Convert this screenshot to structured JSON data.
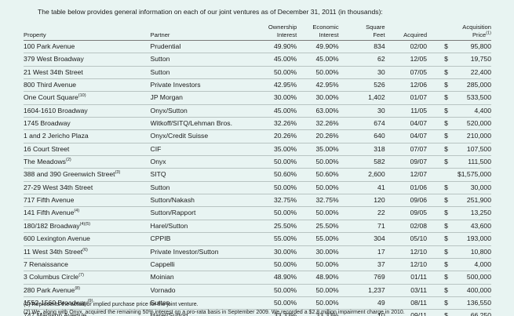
{
  "intro": "The table below provides general information on each of our joint ventures as of December 31, 2011 (in thousands):",
  "headers": {
    "property": "Property",
    "partner": "Partner",
    "ownership_1": "Ownership",
    "ownership_2": "Interest",
    "economic_1": "Economic",
    "economic_2": "Interest",
    "square_1": "Square",
    "square_2": "Feet",
    "acquired": "Acquired",
    "price_1": "Acquisition",
    "price_2": "Price",
    "price_sup": "(1)"
  },
  "rows": [
    {
      "property": "100 Park Avenue",
      "sup": "",
      "partner": "Prudential",
      "ownership": "49.90%",
      "economic": "49.90%",
      "sqft": "834",
      "acquired": "02/00",
      "dollar": "$",
      "price": "95,800"
    },
    {
      "property": "379 West Broadway",
      "sup": "",
      "partner": "Sutton",
      "ownership": "45.00%",
      "economic": "45.00%",
      "sqft": "62",
      "acquired": "12/05",
      "dollar": "$",
      "price": "19,750"
    },
    {
      "property": "21 West 34th Street",
      "sup": "",
      "partner": "Sutton",
      "ownership": "50.00%",
      "economic": "50.00%",
      "sqft": "30",
      "acquired": "07/05",
      "dollar": "$",
      "price": "22,400"
    },
    {
      "property": "800 Third Avenue",
      "sup": "",
      "partner": "Private Investors",
      "ownership": "42.95%",
      "economic": "42.95%",
      "sqft": "526",
      "acquired": "12/06",
      "dollar": "$",
      "price": "285,000"
    },
    {
      "property": "One Court Square",
      "sup": "(10)",
      "partner": "JP Morgan",
      "ownership": "30.00%",
      "economic": "30.00%",
      "sqft": "1,402",
      "acquired": "01/07",
      "dollar": "$",
      "price": "533,500"
    },
    {
      "property": "1604-1610 Broadway",
      "sup": "",
      "partner": "Onyx/Sutton",
      "ownership": "45.00%",
      "economic": "63.00%",
      "sqft": "30",
      "acquired": "11/05",
      "dollar": "$",
      "price": "4,400"
    },
    {
      "property": "1745 Broadway",
      "sup": "",
      "partner": "Witkoff/SITQ/Lehman Bros.",
      "ownership": "32.26%",
      "economic": "32.26%",
      "sqft": "674",
      "acquired": "04/07",
      "dollar": "$",
      "price": "520,000"
    },
    {
      "property": "1 and 2 Jericho Plaza",
      "sup": "",
      "partner": "Onyx/Credit Suisse",
      "ownership": "20.26%",
      "economic": "20.26%",
      "sqft": "640",
      "acquired": "04/07",
      "dollar": "$",
      "price": "210,000"
    },
    {
      "property": "16 Court Street",
      "sup": "",
      "partner": "CIF",
      "ownership": "35.00%",
      "economic": "35.00%",
      "sqft": "318",
      "acquired": "07/07",
      "dollar": "$",
      "price": "107,500"
    },
    {
      "property": "The Meadows",
      "sup": "(2)",
      "partner": "Onyx",
      "ownership": "50.00%",
      "economic": "50.00%",
      "sqft": "582",
      "acquired": "09/07",
      "dollar": "$",
      "price": "111,500"
    },
    {
      "property": "388 and 390 Greenwich Street",
      "sup": "(3)",
      "partner": "SITQ",
      "ownership": "50.60%",
      "economic": "50.60%",
      "sqft": "2,600",
      "acquired": "12/07",
      "dollar": "",
      "price": "$1,575,000"
    },
    {
      "property": "27-29 West 34th Street",
      "sup": "",
      "partner": "Sutton",
      "ownership": "50.00%",
      "economic": "50.00%",
      "sqft": "41",
      "acquired": "01/06",
      "dollar": "$",
      "price": "30,000"
    },
    {
      "property": "717 Fifth Avenue",
      "sup": "",
      "partner": "Sutton/Nakash",
      "ownership": "32.75%",
      "economic": "32.75%",
      "sqft": "120",
      "acquired": "09/06",
      "dollar": "$",
      "price": "251,900"
    },
    {
      "property": "141 Fifth Avenue",
      "sup": "(4)",
      "partner": "Sutton/Rapport",
      "ownership": "50.00%",
      "economic": "50.00%",
      "sqft": "22",
      "acquired": "09/05",
      "dollar": "$",
      "price": "13,250"
    },
    {
      "property": "180/182 Broadway",
      "sup": "(4)(5)",
      "partner": "Harel/Sutton",
      "ownership": "25.50%",
      "economic": "25.50%",
      "sqft": "71",
      "acquired": "02/08",
      "dollar": "$",
      "price": "43,600"
    },
    {
      "property": "600 Lexington Avenue",
      "sup": "",
      "partner": "CPPIB",
      "ownership": "55.00%",
      "economic": "55.00%",
      "sqft": "304",
      "acquired": "05/10",
      "dollar": "$",
      "price": "193,000"
    },
    {
      "property": "11 West 34th Street",
      "sup": "(6)",
      "partner": "Private Investor/Sutton",
      "ownership": "30.00%",
      "economic": "30.00%",
      "sqft": "17",
      "acquired": "12/10",
      "dollar": "$",
      "price": "10,800"
    },
    {
      "property": "7 Renaissance",
      "sup": "",
      "partner": "Cappelli",
      "ownership": "50.00%",
      "economic": "50.00%",
      "sqft": "37",
      "acquired": "12/10",
      "dollar": "$",
      "price": "4,000"
    },
    {
      "property": "3 Columbus Circle",
      "sup": "(7)",
      "partner": "Moinian",
      "ownership": "48.90%",
      "economic": "48.90%",
      "sqft": "769",
      "acquired": "01/11",
      "dollar": "$",
      "price": "500,000"
    },
    {
      "property": "280 Park Avenue",
      "sup": "(8)",
      "partner": "Vornado",
      "ownership": "50.00%",
      "economic": "50.00%",
      "sqft": "1,237",
      "acquired": "03/11",
      "dollar": "$",
      "price": "400,000"
    },
    {
      "property": "1552-1560 Broadway",
      "sup": "(9)",
      "partner": "Sutton",
      "ownership": "50.00%",
      "economic": "50.00%",
      "sqft": "49",
      "acquired": "08/11",
      "dollar": "$",
      "price": "136,550"
    },
    {
      "property": "747 Madison Avenue",
      "sup": "",
      "partner": "Harel/Sutton",
      "ownership": "33.33%",
      "economic": "33.33%",
      "sqft": "10",
      "acquired": "09/11",
      "dollar": "$",
      "price": "66,250"
    }
  ],
  "footnotes": [
    "(1) Represents the actual or implied purchase price for the joint venture.",
    "(2) We, along with Onyx, acquired the remaining 50% interest on a pro-rata basis in September 2009. We recorded a $2.8 million impairment charge in 2010."
  ]
}
